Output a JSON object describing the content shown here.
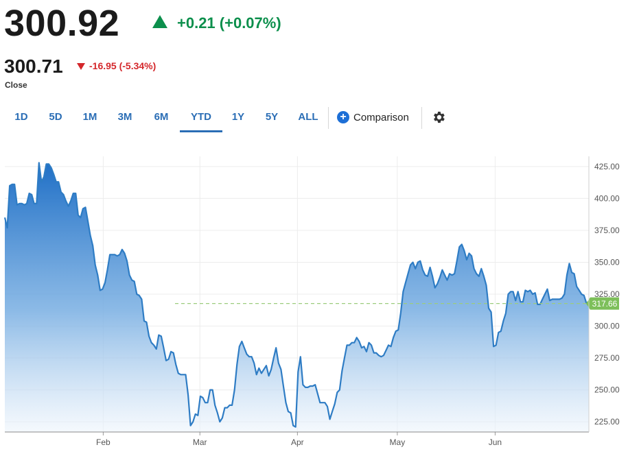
{
  "quote": {
    "last_price": "300.92",
    "change": "+0.21 (+0.07%)",
    "close_price": "300.71",
    "close_change": "-16.95 (-5.34%)",
    "close_label": "Close"
  },
  "ranges": [
    "1D",
    "5D",
    "1M",
    "3M",
    "6M",
    "YTD",
    "1Y",
    "5Y",
    "ALL"
  ],
  "active_range": "YTD",
  "comparison_label": "Comparison",
  "settings_icon": "gear-icon",
  "colors": {
    "up": "#0c8f4c",
    "down": "#d4272b",
    "line": "#2e7cc4",
    "accent": "#2a6db5",
    "badge": "#7dbf5a"
  },
  "chart_data": {
    "type": "area",
    "x_labels": [
      "Feb",
      "Mar",
      "Apr",
      "May",
      "Jun"
    ],
    "y_ticks": [
      "425.00",
      "400.00",
      "375.00",
      "350.00",
      "325.00",
      "300.00",
      "275.00",
      "250.00",
      "225.00"
    ],
    "ylim": [
      217,
      433
    ],
    "reference_line": 317.66,
    "reference_label": "317.66",
    "grid": true,
    "values": [
      385,
      377,
      410,
      411,
      411,
      395,
      396,
      396,
      395,
      396,
      404,
      403,
      396,
      396,
      428,
      413,
      417,
      427,
      427,
      424,
      419,
      413,
      413,
      405,
      403,
      398,
      394,
      398,
      404,
      404,
      387,
      385,
      392,
      393,
      382,
      371,
      363,
      348,
      340,
      328,
      329,
      334,
      344,
      356,
      356,
      356,
      355,
      356,
      360,
      357,
      351,
      340,
      336,
      335,
      325,
      324,
      321,
      304,
      303,
      292,
      287,
      285,
      282,
      293,
      292,
      283,
      273,
      274,
      280,
      279,
      270,
      263,
      262,
      262,
      262,
      246,
      222,
      225,
      231,
      230,
      245,
      244,
      240,
      240,
      250,
      250,
      238,
      232,
      225,
      228,
      236,
      236,
      238,
      238,
      250,
      270,
      284,
      288,
      283,
      278,
      276,
      276,
      271,
      262,
      267,
      263,
      266,
      269,
      261,
      266,
      275,
      283,
      271,
      266,
      253,
      240,
      233,
      232,
      222,
      221,
      264,
      276,
      254,
      252,
      252,
      253,
      253,
      254,
      247,
      240,
      240,
      240,
      237,
      227,
      233,
      239,
      248,
      250,
      265,
      275,
      285,
      285,
      287,
      287,
      291,
      288,
      283,
      284,
      280,
      287,
      285,
      279,
      279,
      277,
      276,
      277,
      281,
      285,
      284,
      291,
      296,
      297,
      310,
      327,
      334,
      341,
      348,
      350,
      345,
      350,
      351,
      344,
      340,
      339,
      346,
      339,
      330,
      333,
      338,
      344,
      340,
      336,
      341,
      340,
      341,
      351,
      362,
      364,
      359,
      352,
      357,
      355,
      345,
      341,
      339,
      345,
      339,
      332,
      314,
      311,
      284,
      285,
      295,
      296,
      304,
      310,
      325,
      327,
      327,
      320,
      327,
      319,
      319,
      328,
      327,
      328,
      325,
      326,
      317,
      317,
      321,
      325,
      329,
      320,
      321,
      321,
      321,
      321,
      322,
      325,
      340,
      349,
      342,
      341,
      331,
      328,
      325,
      324,
      318,
      317
    ]
  }
}
